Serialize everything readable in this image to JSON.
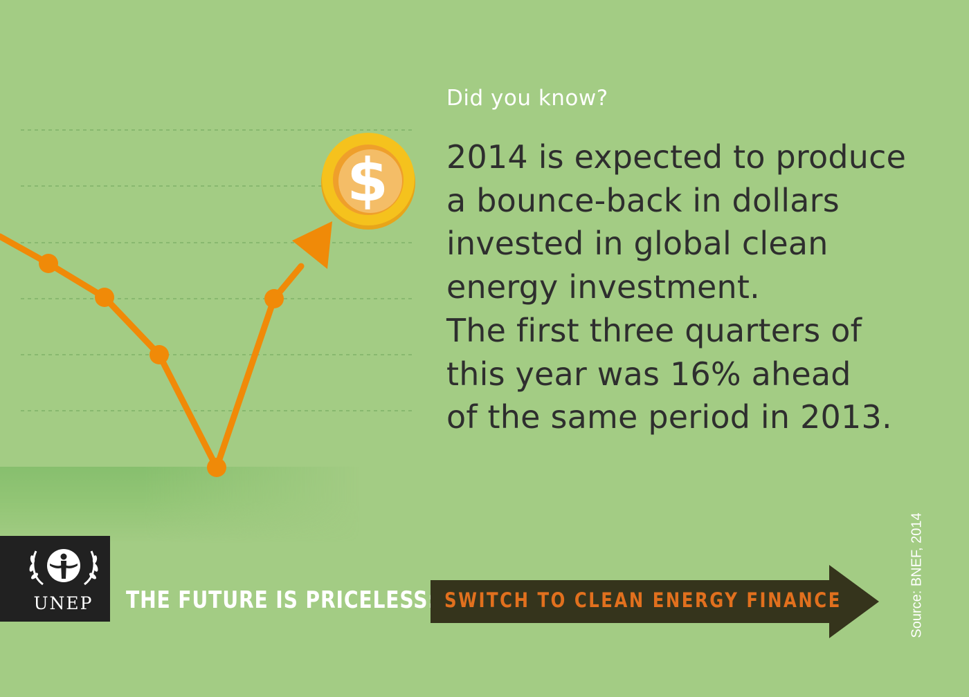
{
  "intro": "Did you know?",
  "fact_lines": [
    "2014 is expected to produce",
    "a bounce-back in dollars",
    "invested in global clean",
    "energy investment.",
    "The first three quarters of",
    "this year was 16% ahead",
    "of the same period in 2013."
  ],
  "coin_symbol": "$",
  "logo_text": "UNEP",
  "tagline": "THE FUTURE IS PRICELESS:",
  "cta": "SWITCH TO CLEAN ENERGY FINANCE",
  "source": "Source: BNEF, 2014",
  "colors": {
    "background": "#a3cc84",
    "line": "#f08a08",
    "text": "#2e2e2e",
    "cta_arrow": "#35341c",
    "cta_text": "#e1701e",
    "coin": "#f5c21d"
  },
  "icons": [
    "un-emblem-icon",
    "dollar-coin-icon",
    "trend-arrow-icon"
  ]
}
